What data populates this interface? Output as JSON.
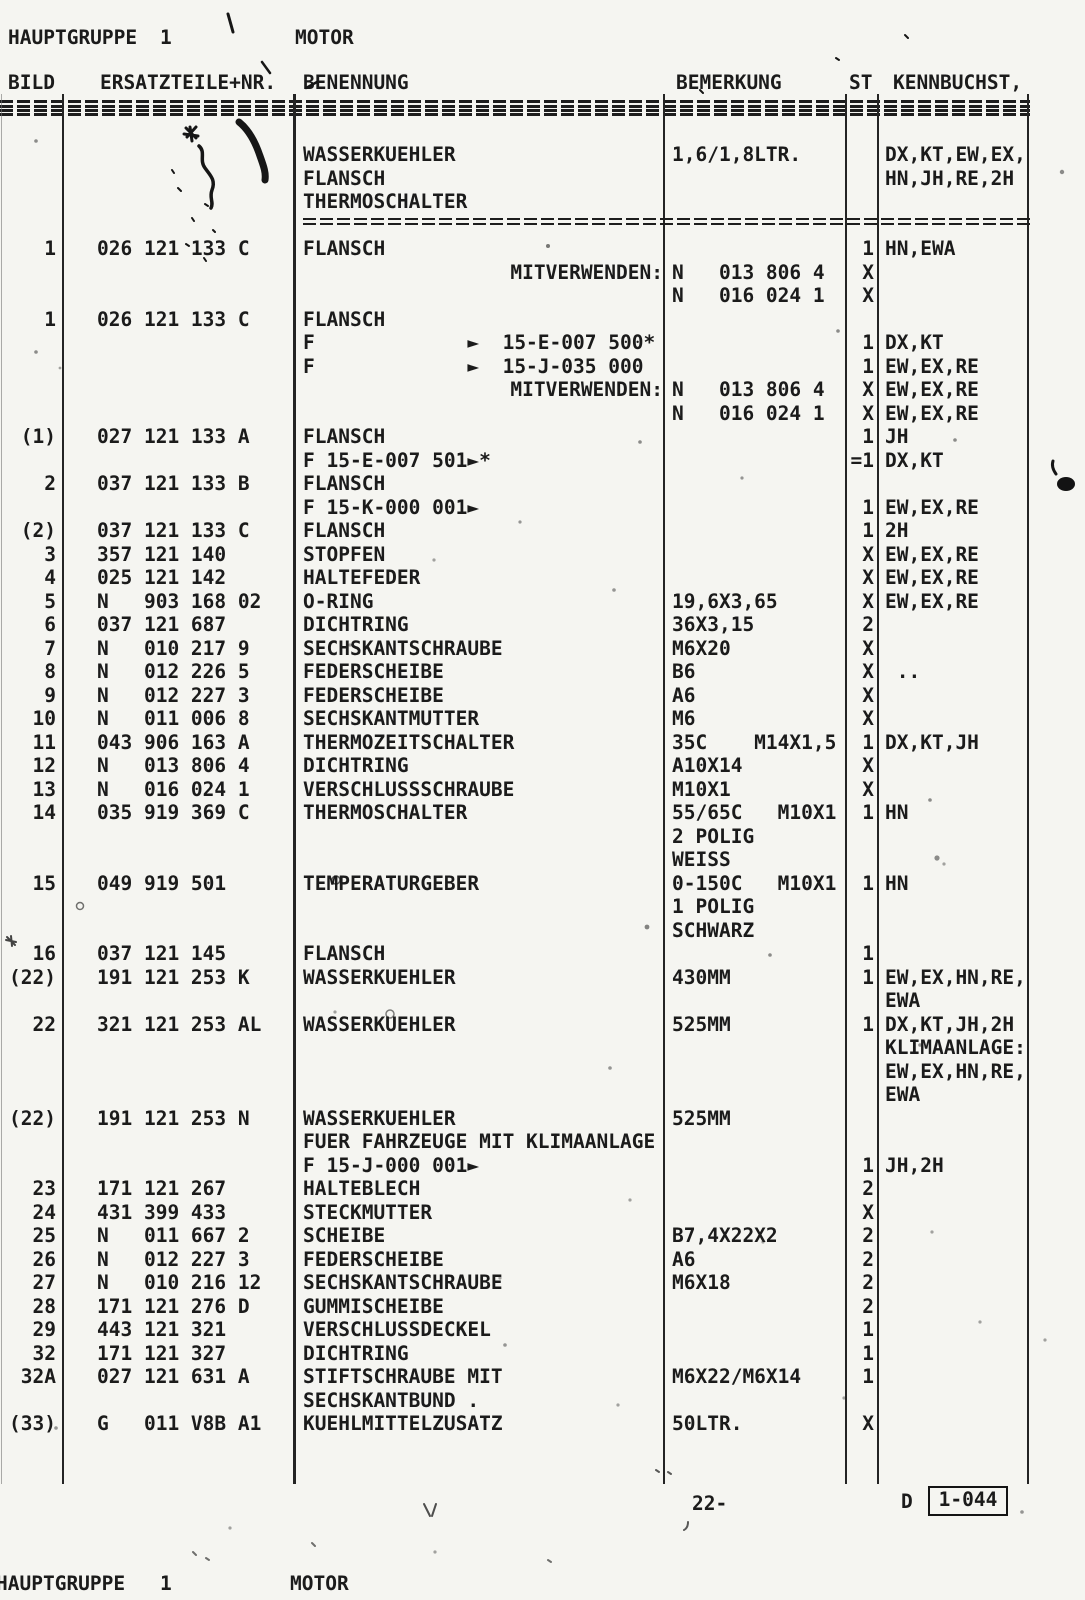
{
  "header": {
    "hauptgruppe_label": "HAUPTGRUPPE",
    "hauptgruppe_number": "1",
    "section_title": "MOTOR"
  },
  "table": {
    "columns": {
      "bild": "BILD",
      "nr": "ERSATZTEILE+NR.",
      "ben": "BENENNUNG",
      "bem": "BEMERKUNG",
      "st": "ST",
      "kenn": "KENNBUCHST,"
    },
    "rows": [
      {
        "be": "WASSERKUEHLER",
        "bm": "1,6/1,8LTR.",
        "k": "DX,KT,EW,EX,"
      },
      {
        "be": "FLANSCH",
        "k": "HN,JH,RE,2H"
      },
      {
        "be": "THERMOSCHALTER"
      },
      {
        "kind": "sep"
      },
      {
        "b": "1",
        "n": "026 121 133 C",
        "be": "FLANSCH",
        "s": "1",
        "k": "HN,EWA"
      },
      {
        "be": "MITVERWENDEN:",
        "al": "r",
        "bm": "N   013 806 4",
        "s": "X"
      },
      {
        "bm": "N   016 024 1",
        "s": "X"
      },
      {
        "b": "1",
        "n": "026 121 133 C",
        "be": "FLANSCH"
      },
      {
        "be": "F             ►  15-E-007 500*",
        "s": "1",
        "k": "DX,KT"
      },
      {
        "be": "F             ►  15-J-035 000",
        "s": "1",
        "k": "EW,EX,RE"
      },
      {
        "be": "MITVERWENDEN:",
        "al": "r",
        "bm": "N   013 806 4",
        "s": "X",
        "k": "EW,EX,RE"
      },
      {
        "bm": "N   016 024 1",
        "s": "X",
        "k": "EW,EX,RE"
      },
      {
        "b": "(1)",
        "n": "027 121 133 A",
        "be": "FLANSCH",
        "s": "1",
        "k": "JH"
      },
      {
        "be": "F 15-E-007 501►*",
        "s": "=1",
        "k": "DX,KT"
      },
      {
        "b": "2",
        "n": "037 121 133 B",
        "be": "FLANSCH"
      },
      {
        "be": "F 15-K-000 001►",
        "s": "1",
        "k": "EW,EX,RE"
      },
      {
        "b": "(2)",
        "n": "037 121 133 C",
        "be": "FLANSCH",
        "s": "1",
        "k": "2H"
      },
      {
        "b": "3",
        "n": "357 121 140",
        "be": "STOPFEN",
        "s": "X",
        "k": "EW,EX,RE"
      },
      {
        "b": "4",
        "n": "025 121 142",
        "be": "HALTEFEDER",
        "s": "X",
        "k": "EW,EX,RE"
      },
      {
        "b": "5",
        "n": "N   903 168 02",
        "be": "O-RING",
        "bm": "19,6X3,65",
        "s": "X",
        "k": "EW,EX,RE"
      },
      {
        "b": "6",
        "n": "037 121 687",
        "be": "DICHTRING",
        "bm": "36X3,15",
        "s": "2"
      },
      {
        "b": "7",
        "n": "N   010 217 9",
        "be": "SECHSKANTSCHRAUBE",
        "bm": "M6X20",
        "s": "X"
      },
      {
        "b": "8",
        "n": "N   012 226 5",
        "be": "FEDERSCHEIBE",
        "bm": "B6",
        "s": "X",
        "k": " .."
      },
      {
        "b": "9",
        "n": "N   012 227 3",
        "be": "FEDERSCHEIBE",
        "bm": "A6",
        "s": "X"
      },
      {
        "b": "10",
        "n": "N   011 006 8",
        "be": "SECHSKANTMUTTER",
        "bm": "M6",
        "s": "X"
      },
      {
        "b": "11",
        "n": "043 906 163 A",
        "be": "THERMOZEITSCHALTER",
        "bm": "35C    M14X1,5",
        "s": "1",
        "k": "DX,KT,JH"
      },
      {
        "b": "12",
        "n": "N   013 806 4",
        "be": "DICHTRING",
        "bm": "A10X14",
        "s": "X"
      },
      {
        "b": "13",
        "n": "N   016 024 1",
        "be": "VERSCHLUSSSCHRAUBE",
        "bm": "M10X1",
        "s": "X"
      },
      {
        "b": "14",
        "n": "035 919 369 C",
        "be": "THERMOSCHALTER",
        "bm": "55/65C   M10X1",
        "s": "1",
        "k": "HN"
      },
      {
        "bm": "2 POLIG"
      },
      {
        "bm": "WEISS"
      },
      {
        "b": "15",
        "n": "049 919 501",
        "be": "TEMPERATURGEBER",
        "bm": "0-150C   M10X1",
        "s": "1",
        "k": "HN"
      },
      {
        "bm": "1 POLIG"
      },
      {
        "bm": "SCHWARZ"
      },
      {
        "b": "16",
        "n": "037 121 145",
        "be": "FLANSCH",
        "s": "1"
      },
      {
        "b": "(22)",
        "n": "191 121 253 K",
        "be": "WASSERKUEHLER",
        "bm": "430MM",
        "s": "1",
        "k": "EW,EX,HN,RE,"
      },
      {
        "k": "EWA"
      },
      {
        "b": "22",
        "n": "321 121 253 AL",
        "be": "WASSERKUEHLER",
        "bm": "525MM",
        "s": "1",
        "k": "DX,KT,JH,2H"
      },
      {
        "k": "KLIMAANLAGE:"
      },
      {
        "k": "EW,EX,HN,RE,"
      },
      {
        "k": "EWA"
      },
      {
        "b": "(22)",
        "n": "191 121 253 N",
        "be": "WASSERKUEHLER",
        "bm": "525MM"
      },
      {
        "be": "FUER FAHRZEUGE MIT KLIMAANLAGE"
      },
      {
        "be": "F 15-J-000 001►",
        "s": "1",
        "k": "JH,2H"
      },
      {
        "b": "23",
        "n": "171 121 267",
        "be": "HALTEBLECH",
        "s": "2"
      },
      {
        "b": "24",
        "n": "431 399 433",
        "be": "STECKMUTTER",
        "s": "X"
      },
      {
        "b": "25",
        "n": "N   011 667 2",
        "be": "SCHEIBE",
        "bm": "B7,4X22X2",
        "s": "2"
      },
      {
        "b": "26",
        "n": "N   012 227 3",
        "be": "FEDERSCHEIBE",
        "bm": "A6",
        "s": "2"
      },
      {
        "b": "27",
        "n": "N   010 216 12",
        "be": "SECHSKANTSCHRAUBE",
        "bm": "M6X18",
        "s": "2"
      },
      {
        "b": "28",
        "n": "171 121 276 D",
        "be": "GUMMISCHEIBE",
        "s": "2"
      },
      {
        "b": "29",
        "n": "443 121 321",
        "be": "VERSCHLUSSDECKEL",
        "s": "1"
      },
      {
        "b": "32",
        "n": "171 121 327",
        "be": "DICHTRING",
        "s": "1"
      },
      {
        "b": "32A",
        "n": "027 121 631 A",
        "be": "STIFTSCHRAUBE MIT",
        "bm": "M6X22/M6X14",
        "s": "1"
      },
      {
        "be": "SECHSKANTBUND ."
      },
      {
        "b": "(33)",
        "n": "G   011 V8B A1",
        "be": "KUEHLMITTELZUSATZ",
        "bm": "50LTR.",
        "s": "X"
      }
    ]
  },
  "footer": {
    "page_number": "22-",
    "code_prefix": "D",
    "code": "1-044",
    "hauptgruppe_label": "HAUPTGRUPPE",
    "hauptgruppe_number": "1",
    "section_title": "MOTOR"
  }
}
